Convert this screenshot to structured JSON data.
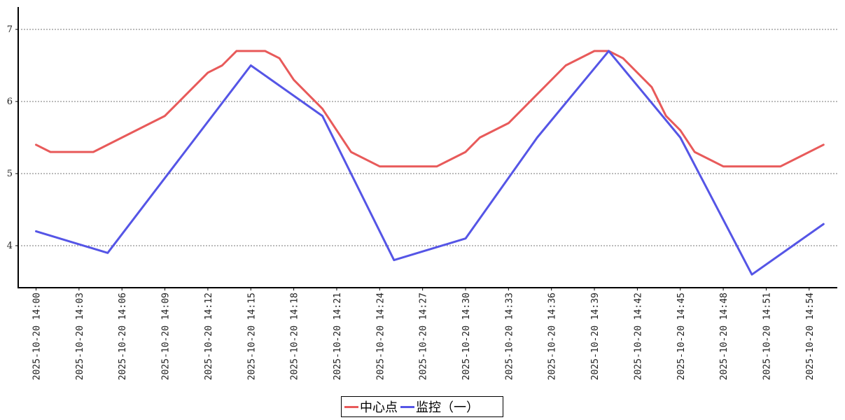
{
  "chart_data": {
    "type": "line",
    "title": "",
    "xlabel": "",
    "ylabel": "",
    "ylim": [
      3.45,
      7.35
    ],
    "yticks": [
      4,
      5,
      6,
      7
    ],
    "grid": true,
    "legend_position": "bottom-center",
    "x": [
      "2025-10-20 14:00",
      "2025-10-20 14:01",
      "2025-10-20 14:02",
      "2025-10-20 14:03",
      "2025-10-20 14:04",
      "2025-10-20 14:05",
      "2025-10-20 14:06",
      "2025-10-20 14:07",
      "2025-10-20 14:08",
      "2025-10-20 14:09",
      "2025-10-20 14:10",
      "2025-10-20 14:11",
      "2025-10-20 14:12",
      "2025-10-20 14:13",
      "2025-10-20 14:14",
      "2025-10-20 14:15",
      "2025-10-20 14:16",
      "2025-10-20 14:17",
      "2025-10-20 14:18",
      "2025-10-20 14:19",
      "2025-10-20 14:20",
      "2025-10-20 14:21",
      "2025-10-20 14:22",
      "2025-10-20 14:23",
      "2025-10-20 14:24",
      "2025-10-20 14:25",
      "2025-10-20 14:26",
      "2025-10-20 14:27",
      "2025-10-20 14:28",
      "2025-10-20 14:29",
      "2025-10-20 14:30",
      "2025-10-20 14:31",
      "2025-10-20 14:32",
      "2025-10-20 14:33",
      "2025-10-20 14:34",
      "2025-10-20 14:35",
      "2025-10-20 14:36",
      "2025-10-20 14:37",
      "2025-10-20 14:38",
      "2025-10-20 14:39",
      "2025-10-20 14:40",
      "2025-10-20 14:41",
      "2025-10-20 14:42",
      "2025-10-20 14:43",
      "2025-10-20 14:44",
      "2025-10-20 14:45",
      "2025-10-20 14:46",
      "2025-10-20 14:47",
      "2025-10-20 14:48",
      "2025-10-20 14:49",
      "2025-10-20 14:50",
      "2025-10-20 14:51",
      "2025-10-20 14:52",
      "2025-10-20 14:53",
      "2025-10-20 14:54",
      "2025-10-20 14:55",
      "2025-10-20 14:56"
    ],
    "xtick_labels": [
      "2025-10-20 14:00",
      "2025-10-20 14:03",
      "2025-10-20 14:06",
      "2025-10-20 14:09",
      "2025-10-20 14:12",
      "2025-10-20 14:15",
      "2025-10-20 14:18",
      "2025-10-20 14:21",
      "2025-10-20 14:24",
      "2025-10-20 14:27",
      "2025-10-20 14:30",
      "2025-10-20 14:33",
      "2025-10-20 14:36",
      "2025-10-20 14:39",
      "2025-10-20 14:42",
      "2025-10-20 14:45",
      "2025-10-20 14:48",
      "2025-10-20 14:51",
      "2025-10-20 14:54"
    ],
    "series": [
      {
        "name": "中心点",
        "color": "#e85a5a",
        "points": [
          [
            "2025-10-20 14:00",
            5.4
          ],
          [
            "2025-10-20 14:01",
            5.3
          ],
          [
            "2025-10-20 14:02",
            5.3
          ],
          [
            "2025-10-20 14:03",
            5.3
          ],
          [
            "2025-10-20 14:04",
            5.3
          ],
          [
            "2025-10-20 14:06",
            5.5
          ],
          [
            "2025-10-20 14:08",
            5.7
          ],
          [
            "2025-10-20 14:09",
            5.8
          ],
          [
            "2025-10-20 14:12",
            6.4
          ],
          [
            "2025-10-20 14:13",
            6.5
          ],
          [
            "2025-10-20 14:14",
            6.7
          ],
          [
            "2025-10-20 14:15",
            6.7
          ],
          [
            "2025-10-20 14:16",
            6.7
          ],
          [
            "2025-10-20 14:17",
            6.6
          ],
          [
            "2025-10-20 14:18",
            6.3
          ],
          [
            "2025-10-20 14:20",
            5.9
          ],
          [
            "2025-10-20 14:22",
            5.3
          ],
          [
            "2025-10-20 14:24",
            5.1
          ],
          [
            "2025-10-20 14:28",
            5.1
          ],
          [
            "2025-10-20 14:30",
            5.3
          ],
          [
            "2025-10-20 14:31",
            5.5
          ],
          [
            "2025-10-20 14:33",
            5.7
          ],
          [
            "2025-10-20 14:35",
            6.1
          ],
          [
            "2025-10-20 14:37",
            6.5
          ],
          [
            "2025-10-20 14:39",
            6.7
          ],
          [
            "2025-10-20 14:40",
            6.7
          ],
          [
            "2025-10-20 14:41",
            6.6
          ],
          [
            "2025-10-20 14:43",
            6.2
          ],
          [
            "2025-10-20 14:44",
            5.8
          ],
          [
            "2025-10-20 14:45",
            5.6
          ],
          [
            "2025-10-20 14:46",
            5.3
          ],
          [
            "2025-10-20 14:48",
            5.1
          ],
          [
            "2025-10-20 14:52",
            5.1
          ],
          [
            "2025-10-20 14:55",
            5.4
          ]
        ]
      },
      {
        "name": "监控（一）",
        "color": "#5555e6",
        "points": [
          [
            "2025-10-20 14:00",
            4.2
          ],
          [
            "2025-10-20 14:05",
            3.9
          ],
          [
            "2025-10-20 14:15",
            6.5
          ],
          [
            "2025-10-20 14:20",
            5.8
          ],
          [
            "2025-10-20 14:25",
            3.8
          ],
          [
            "2025-10-20 14:30",
            4.1
          ],
          [
            "2025-10-20 14:35",
            5.5
          ],
          [
            "2025-10-20 14:40",
            6.7
          ],
          [
            "2025-10-20 14:45",
            5.5
          ],
          [
            "2025-10-20 14:50",
            3.6
          ],
          [
            "2025-10-20 14:55",
            4.3
          ]
        ]
      }
    ]
  }
}
